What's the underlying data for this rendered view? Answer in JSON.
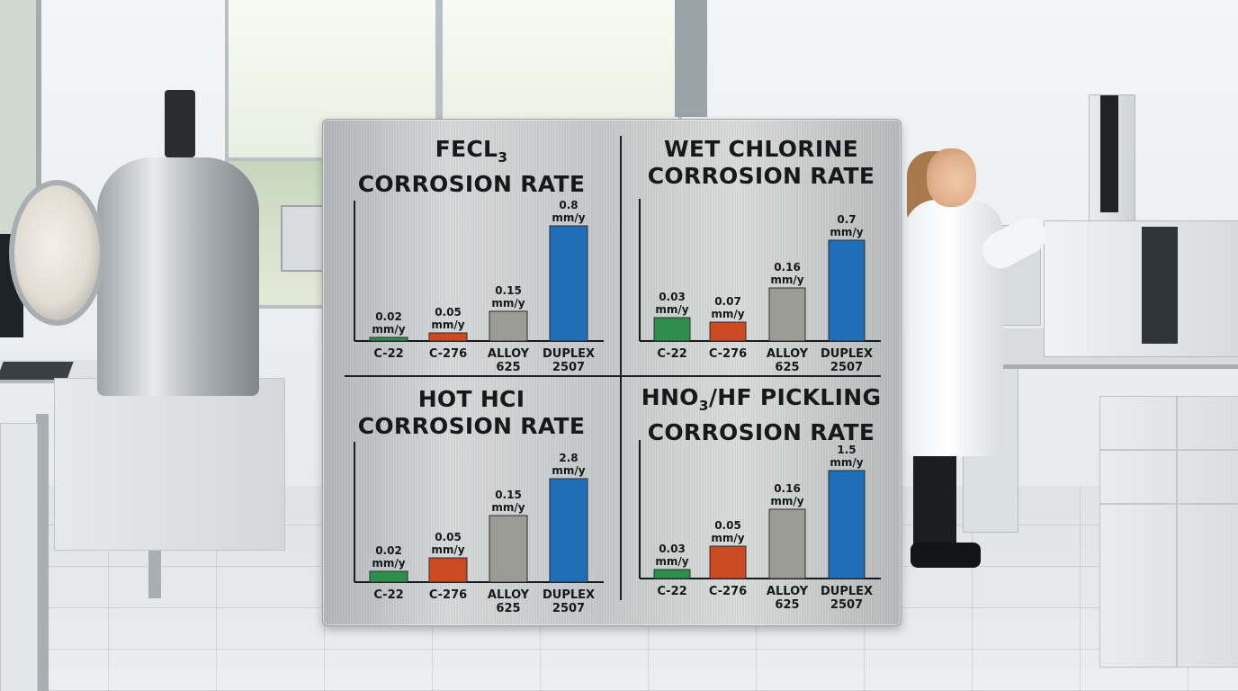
{
  "colors": {
    "c22": "#2e8f4c",
    "c276": "#cc4a22",
    "alloy625": "#9c9c96",
    "duplex2507": "#1f6fb8",
    "ink": "#161819"
  },
  "chart_data": [
    {
      "type": "bar",
      "title_line1": "FECL3",
      "title_line2": "CORROSION RATE",
      "categories": [
        "C-22",
        "C-276",
        "ALLOY 625",
        "DUPLEX 2507"
      ],
      "values": [
        0.02,
        0.05,
        0.15,
        0.8
      ],
      "value_labels": [
        "0.02",
        "0.05",
        "0.15",
        "0.8"
      ],
      "unit": "mm/y"
    },
    {
      "type": "bar",
      "title_line1": "WET CHLORINE",
      "title_line2": "CORROSION RATE",
      "categories": [
        "C-22",
        "C-276",
        "ALLOY 625",
        "DUPLEX 2507"
      ],
      "values": [
        0.03,
        0.07,
        0.16,
        0.7
      ],
      "value_labels": [
        "0.03",
        "0.07",
        "0.16",
        "0.7"
      ],
      "unit": "mm/y"
    },
    {
      "type": "bar",
      "title_line1": "HOT HCI",
      "title_line2": "CORROSION RATE",
      "categories": [
        "C-22",
        "C-276",
        "ALLOY 625",
        "DUPLEX 2507"
      ],
      "values": [
        0.02,
        0.05,
        0.15,
        2.8
      ],
      "value_labels": [
        "0.02",
        "0.05",
        "0.15",
        "2.8"
      ],
      "unit": "mm/y"
    },
    {
      "type": "bar",
      "title_line1": "HNO3/HF PICKLING",
      "title_line2": "CORROSION RATE",
      "categories": [
        "C-22",
        "C-276",
        "ALLOY 625",
        "DUPLEX 2507"
      ],
      "values": [
        0.03,
        0.05,
        0.16,
        1.5
      ],
      "value_labels": [
        "0.03",
        "0.05",
        "0.16",
        "1.5"
      ],
      "unit": "mm/y"
    }
  ]
}
